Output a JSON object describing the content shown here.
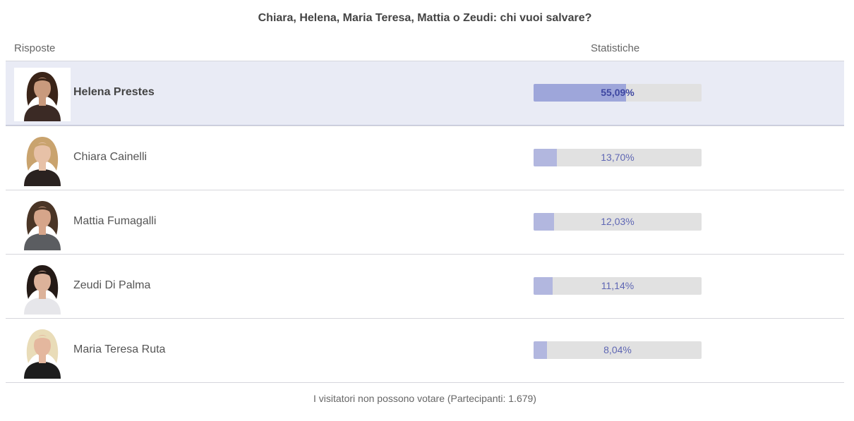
{
  "poll": {
    "title": "Chiara, Helena, Maria Teresa, Mattia o Zeudi: chi vuoi salvare?",
    "headers": {
      "answers": "Risposte",
      "stats": "Statistiche"
    },
    "options": [
      {
        "name": "Helena Prestes",
        "percent_label": "55,09%",
        "percent": 55.09,
        "leading": true,
        "avatar_icon": "helena-prestes-photo",
        "hair_color": "#3a2418",
        "skin_color": "#c99a7d",
        "top_color": "#3b2a25"
      },
      {
        "name": "Chiara Cainelli",
        "percent_label": "13,70%",
        "percent": 13.7,
        "leading": false,
        "avatar_icon": "chiara-cainelli-photo",
        "hair_color": "#c9a36e",
        "skin_color": "#e7c1a7",
        "top_color": "#2a2220"
      },
      {
        "name": "Mattia Fumagalli",
        "percent_label": "12,03%",
        "percent": 12.03,
        "leading": false,
        "avatar_icon": "mattia-fumagalli-photo",
        "hair_color": "#4a3526",
        "skin_color": "#d6a58a",
        "top_color": "#5b5d61"
      },
      {
        "name": "Zeudi Di Palma",
        "percent_label": "11,14%",
        "percent": 11.14,
        "leading": false,
        "avatar_icon": "zeudi-di-palma-photo",
        "hair_color": "#241a16",
        "skin_color": "#dcb29a",
        "top_color": "#e6e6ea"
      },
      {
        "name": "Maria Teresa Ruta",
        "percent_label": "8,04%",
        "percent": 8.04,
        "leading": false,
        "avatar_icon": "maria-teresa-ruta-photo",
        "hair_color": "#e9dcb8",
        "skin_color": "#e4b79e",
        "top_color": "#1d1d1d"
      }
    ],
    "footer": "I visitatori non possono votare (Partecipanti: 1.679)"
  }
}
